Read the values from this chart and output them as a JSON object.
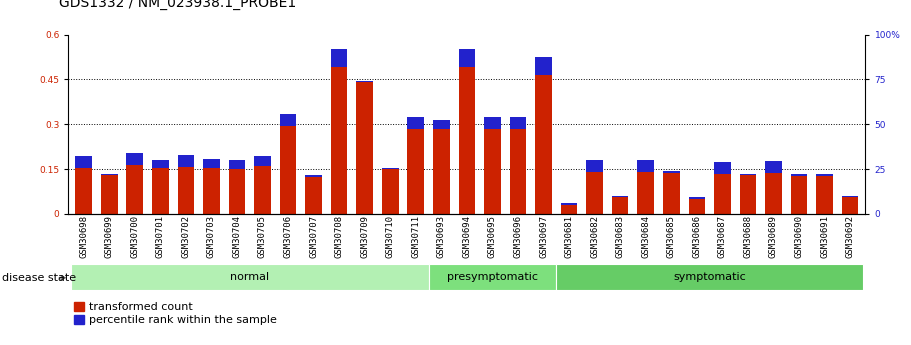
{
  "title": "GDS1332 / NM_023938.1_PROBE1",
  "samples": [
    "GSM30698",
    "GSM30699",
    "GSM30700",
    "GSM30701",
    "GSM30702",
    "GSM30703",
    "GSM30704",
    "GSM30705",
    "GSM30706",
    "GSM30707",
    "GSM30708",
    "GSM30709",
    "GSM30710",
    "GSM30711",
    "GSM30693",
    "GSM30694",
    "GSM30695",
    "GSM30696",
    "GSM30697",
    "GSM30681",
    "GSM30682",
    "GSM30683",
    "GSM30684",
    "GSM30685",
    "GSM30686",
    "GSM30687",
    "GSM30688",
    "GSM30689",
    "GSM30690",
    "GSM30691",
    "GSM30692"
  ],
  "red_values": [
    0.155,
    0.13,
    0.165,
    0.155,
    0.157,
    0.152,
    0.15,
    0.16,
    0.295,
    0.125,
    0.49,
    0.44,
    0.15,
    0.285,
    0.285,
    0.49,
    0.285,
    0.285,
    0.465,
    0.03,
    0.14,
    0.055,
    0.14,
    0.138,
    0.05,
    0.135,
    0.13,
    0.137,
    0.128,
    0.128,
    0.055
  ],
  "blue_values": [
    0.04,
    0.005,
    0.04,
    0.025,
    0.04,
    0.03,
    0.03,
    0.035,
    0.04,
    0.005,
    0.06,
    0.005,
    0.005,
    0.04,
    0.03,
    0.06,
    0.04,
    0.04,
    0.06,
    0.005,
    0.04,
    0.005,
    0.04,
    0.005,
    0.005,
    0.04,
    0.005,
    0.04,
    0.005,
    0.005,
    0.005
  ],
  "groups": [
    {
      "label": "normal",
      "start": 0,
      "end": 14,
      "color": "#b3f0b3"
    },
    {
      "label": "presymptomatic",
      "start": 14,
      "end": 19,
      "color": "#7de07d"
    },
    {
      "label": "symptomatic",
      "start": 19,
      "end": 31,
      "color": "#66cc66"
    }
  ],
  "ylim_left": [
    0,
    0.6
  ],
  "ylim_right": [
    0,
    100
  ],
  "yticks_left": [
    0,
    0.15,
    0.3,
    0.45,
    0.6
  ],
  "yticks_right": [
    0,
    25,
    50,
    75,
    100
  ],
  "red_color": "#cc2200",
  "blue_color": "#2222cc",
  "bg_color": "#ffffff",
  "plot_bg_color": "#ffffff",
  "title_fontsize": 10,
  "tick_fontsize": 6.5,
  "group_label_fontsize": 8,
  "legend_fontsize": 8,
  "disease_state_label": "disease state",
  "legend_items": [
    {
      "label": "transformed count",
      "color": "#cc2200"
    },
    {
      "label": "percentile rank within the sample",
      "color": "#2222cc"
    }
  ]
}
